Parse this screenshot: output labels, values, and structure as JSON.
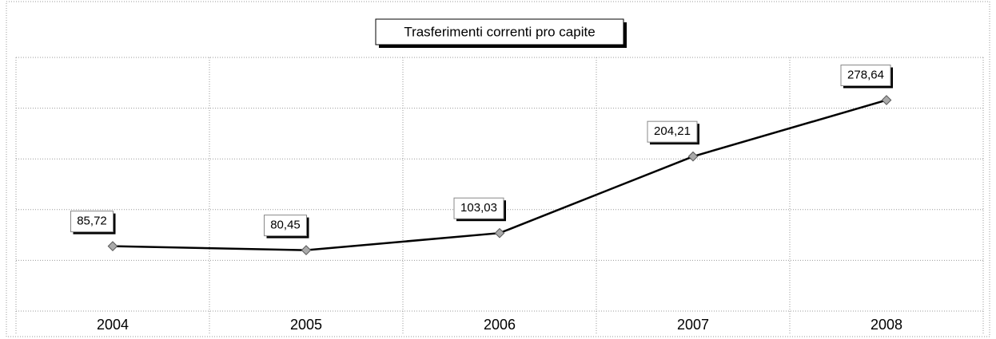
{
  "chart_data": {
    "type": "line",
    "title": "Trasferimenti correnti pro capite",
    "categories": [
      "2004",
      "2005",
      "2006",
      "2007",
      "2008"
    ],
    "series": [
      {
        "name": "Trasferimenti correnti pro capite",
        "color": "#000000",
        "values": [
          85.72,
          80.45,
          103.03,
          204.21,
          278.64
        ],
        "value_labels": [
          "85,72",
          "80,45",
          "103,03",
          "204,21",
          "278,64"
        ]
      }
    ],
    "ylim": [
      0,
      335
    ],
    "yticks": [
      0,
      67,
      134,
      201,
      268,
      335
    ],
    "grid": true
  }
}
